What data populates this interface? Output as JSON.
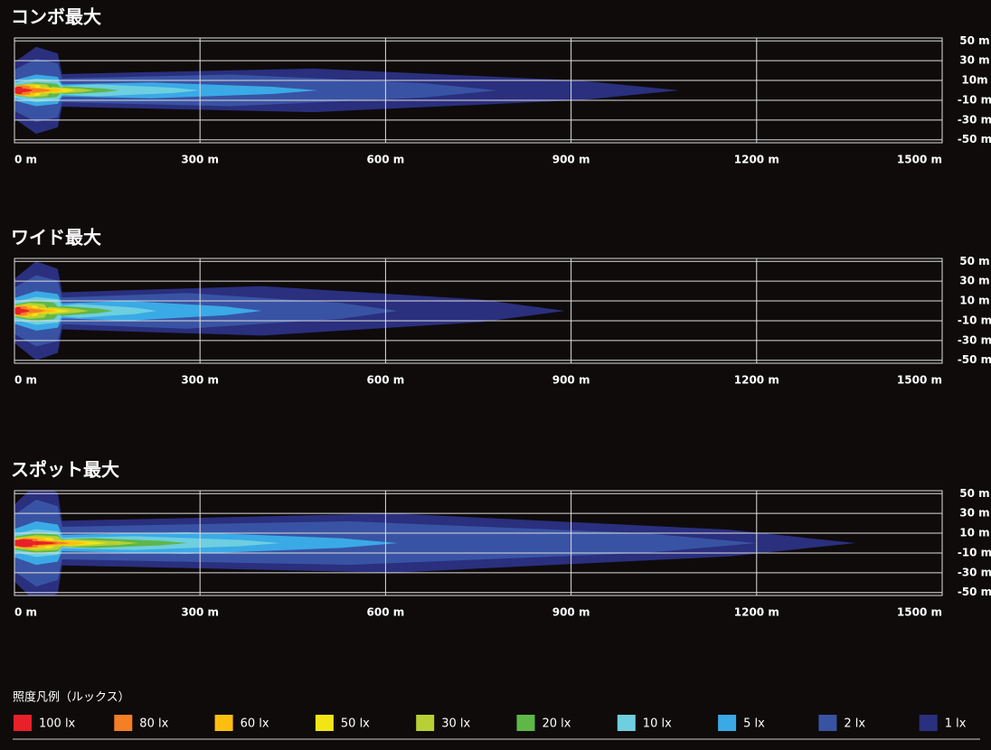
{
  "charts": [
    {
      "type": "contour",
      "title": "コンボ最大",
      "xlim": [
        0,
        1500
      ],
      "ylim": [
        -53,
        53
      ],
      "xticks": [
        {
          "value": 0,
          "label": "0 m"
        },
        {
          "value": 300,
          "label": "300 m"
        },
        {
          "value": 600,
          "label": "600 m"
        },
        {
          "value": 900,
          "label": "900 m"
        },
        {
          "value": 1200,
          "label": "1200 m"
        },
        {
          "value": 1500,
          "label": "1500 m"
        }
      ],
      "yticks": [
        {
          "value": 50,
          "label": "50 m"
        },
        {
          "value": 30,
          "label": "30 m"
        },
        {
          "value": 10,
          "label": "10m"
        },
        {
          "value": -10,
          "label": "-10 m"
        },
        {
          "value": -30,
          "label": "-30 m"
        },
        {
          "value": -50,
          "label": "-50 m"
        }
      ],
      "contours": [
        {
          "reach": 30,
          "half_width": 2
        },
        {
          "reach": 60,
          "half_width": 2.5
        },
        {
          "reach": 80,
          "half_width": 3
        },
        {
          "reach": 100,
          "half_width": 3
        },
        {
          "reach": 130,
          "half_width": 3.5
        },
        {
          "reach": 170,
          "half_width": 4
        },
        {
          "reach": 300,
          "half_width": 6
        },
        {
          "reach": 490,
          "half_width": 8
        },
        {
          "reach": 780,
          "half_width": 16
        },
        {
          "reach": 1075,
          "half_width": 22
        }
      ]
    },
    {
      "type": "contour",
      "title": "ワイド最大",
      "xlim": [
        0,
        1500
      ],
      "ylim": [
        -53,
        53
      ],
      "xticks": [
        {
          "value": 0,
          "label": "0 m"
        },
        {
          "value": 300,
          "label": "300 m"
        },
        {
          "value": 600,
          "label": "600 m"
        },
        {
          "value": 900,
          "label": "900 m"
        },
        {
          "value": 1200,
          "label": "1200 m"
        },
        {
          "value": 1500,
          "label": "1500 m"
        }
      ],
      "yticks": [
        {
          "value": 50,
          "label": "50 m"
        },
        {
          "value": 30,
          "label": "30 m"
        },
        {
          "value": 10,
          "label": "10 m"
        },
        {
          "value": -10,
          "label": "-10 m"
        },
        {
          "value": -30,
          "label": "-30 m"
        },
        {
          "value": -50,
          "label": "-50 m"
        }
      ],
      "contours": [
        {
          "reach": 25,
          "half_width": 2
        },
        {
          "reach": 50,
          "half_width": 2.5
        },
        {
          "reach": 70,
          "half_width": 3
        },
        {
          "reach": 90,
          "half_width": 3
        },
        {
          "reach": 120,
          "half_width": 4
        },
        {
          "reach": 160,
          "half_width": 5
        },
        {
          "reach": 230,
          "half_width": 7
        },
        {
          "reach": 400,
          "half_width": 10
        },
        {
          "reach": 620,
          "half_width": 18
        },
        {
          "reach": 890,
          "half_width": 25
        }
      ]
    },
    {
      "type": "contour",
      "title": "スポット最大",
      "xlim": [
        0,
        1500
      ],
      "ylim": [
        -53,
        53
      ],
      "xticks": [
        {
          "value": 0,
          "label": "0 m"
        },
        {
          "value": 300,
          "label": "300 m"
        },
        {
          "value": 600,
          "label": "600 m"
        },
        {
          "value": 900,
          "label": "900 m"
        },
        {
          "value": 1200,
          "label": "1200 m"
        },
        {
          "value": 1500,
          "label": "1500 m"
        }
      ],
      "yticks": [
        {
          "value": 50,
          "label": "50 m"
        },
        {
          "value": 30,
          "label": "30 m"
        },
        {
          "value": 10,
          "label": "10 m"
        },
        {
          "value": -10,
          "label": "-10 m"
        },
        {
          "value": -30,
          "label": "-30 m"
        },
        {
          "value": -50,
          "label": "-50 m"
        }
      ],
      "contours": [
        {
          "reach": 70,
          "half_width": 2
        },
        {
          "reach": 90,
          "half_width": 2.5
        },
        {
          "reach": 120,
          "half_width": 3
        },
        {
          "reach": 150,
          "half_width": 3
        },
        {
          "reach": 200,
          "half_width": 4
        },
        {
          "reach": 280,
          "half_width": 5
        },
        {
          "reach": 430,
          "half_width": 7
        },
        {
          "reach": 620,
          "half_width": 11
        },
        {
          "reach": 1200,
          "half_width": 22
        },
        {
          "reach": 1360,
          "half_width": 30
        }
      ]
    }
  ],
  "legend": {
    "title": "照度凡例（ルックス）",
    "items": [
      {
        "name": "100 lx",
        "color": "#e8202a"
      },
      {
        "name": "80 lx",
        "color": "#f47f25"
      },
      {
        "name": "60 lx",
        "color": "#fdbf0f"
      },
      {
        "name": "50 lx",
        "color": "#f3e515"
      },
      {
        "name": "30 lx",
        "color": "#b8d033"
      },
      {
        "name": "20 lx",
        "color": "#5fb748"
      },
      {
        "name": "10 lx",
        "color": "#6ecfe0"
      },
      {
        "name": "5 lx",
        "color": "#3aaae6"
      },
      {
        "name": "2 lx",
        "color": "#3953a4"
      },
      {
        "name": "1 lx",
        "color": "#2a2f7e"
      }
    ]
  }
}
